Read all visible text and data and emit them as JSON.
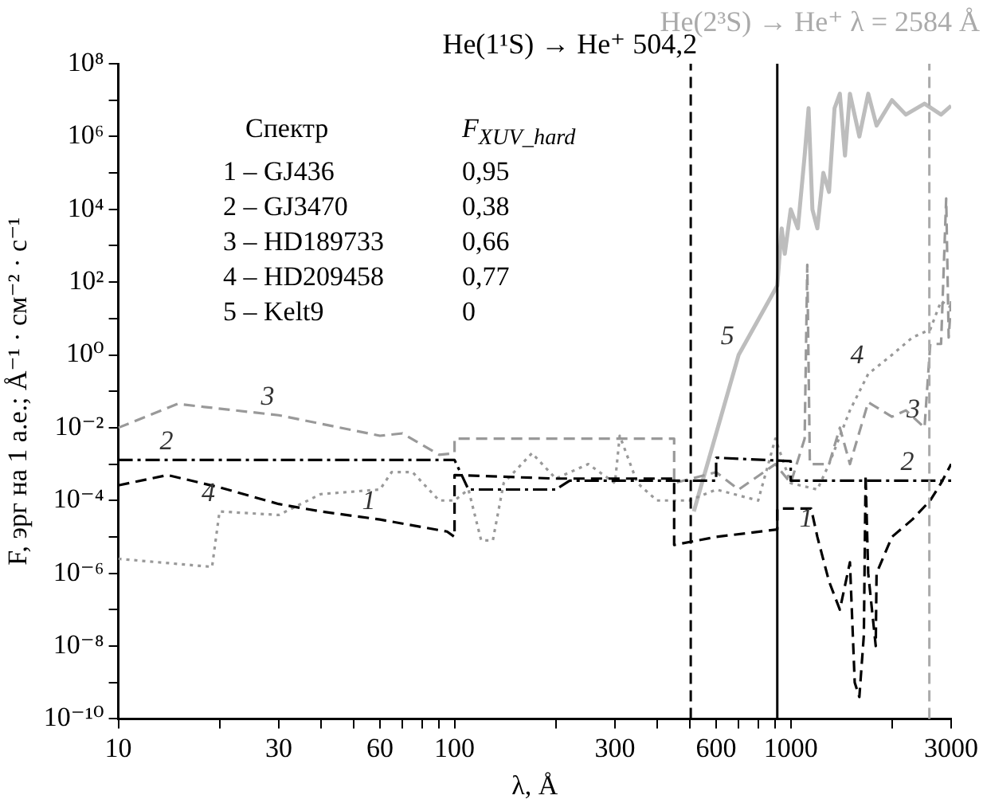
{
  "chart_data": {
    "type": "line",
    "xlabel": "λ, Å",
    "ylabel": "F, эрг на 1 а.е.; Å⁻¹ · см⁻² · с⁻¹",
    "log": "xy",
    "grid": false,
    "legend": false,
    "xlim": [
      10,
      3000
    ],
    "ylim": [
      1e-10,
      100000000.0
    ],
    "xticks": [
      10,
      {
        "value": 20,
        "label": null
      },
      30,
      {
        "value": 40,
        "label": null
      },
      {
        "value": 50,
        "label": null
      },
      60,
      {
        "value": 70,
        "label": null
      },
      {
        "value": 80,
        "label": null
      },
      {
        "value": 90,
        "label": null
      },
      100,
      {
        "value": 200,
        "label": null
      },
      300,
      {
        "value": 400,
        "label": null
      },
      {
        "value": 500,
        "label": null
      },
      600,
      {
        "value": 700,
        "label": null
      },
      {
        "value": 800,
        "label": null
      },
      {
        "value": 900,
        "label": null
      },
      1000,
      {
        "value": 2000,
        "label": null
      },
      3000
    ],
    "yticks": [
      {
        "value": 1e-10,
        "label": "10⁻¹⁰"
      },
      {
        "value": 1e-09,
        "label": null
      },
      {
        "value": 1e-08,
        "label": "10⁻⁸"
      },
      {
        "value": 1e-07,
        "label": null
      },
      {
        "value": 1e-06,
        "label": "10⁻⁶"
      },
      {
        "value": 1e-05,
        "label": null
      },
      {
        "value": 0.0001,
        "label": "10⁻⁴"
      },
      {
        "value": 0.001,
        "label": null
      },
      {
        "value": 0.01,
        "label": "10⁻²"
      },
      {
        "value": 0.1,
        "label": null
      },
      {
        "value": 1,
        "label": "10⁰"
      },
      {
        "value": 10,
        "label": null
      },
      {
        "value": 100,
        "label": "10²"
      },
      {
        "value": 1000,
        "label": null
      },
      {
        "value": 10000,
        "label": "10⁴"
      },
      {
        "value": 100000,
        "label": null
      },
      {
        "value": 1000000,
        "label": "10⁶"
      },
      {
        "value": 10000000,
        "label": null
      },
      {
        "value": 100000000,
        "label": "10⁸"
      }
    ],
    "marker": "none",
    "series": [
      {
        "color": "#000000",
        "line_style": "dashed",
        "x": [
          10,
          14,
          20,
          30,
          40,
          60,
          95,
          100,
          100,
          200,
          450,
          450,
          600,
          912,
          912,
          1150,
          1200,
          1300,
          1400,
          1500,
          1550,
          1600,
          1650,
          1670,
          1700,
          1790,
          1800,
          2000,
          2300,
          2600,
          2800,
          3000
        ],
        "values": [
          0.00026,
          0.0005,
          0.00023,
          8e-05,
          5e-05,
          3e-05,
          1.4e-05,
          1e-05,
          0.0005,
          0.0004,
          0.0004,
          6e-06,
          1e-05,
          1.6e-05,
          6e-05,
          6e-05,
          1e-05,
          6e-07,
          1e-07,
          2e-06,
          1e-09,
          4e-10,
          2e-08,
          0.0005,
          1e-06,
          1e-08,
          1e-06,
          1e-05,
          3e-05,
          0.0001,
          0.0003,
          0.001
        ]
      },
      {
        "color": "#000000",
        "line_style": "dashdot",
        "x": [
          10,
          100,
          110,
          200,
          220,
          600,
          600,
          1000,
          1000,
          3000
        ],
        "values": [
          0.0013,
          0.0013,
          0.0002,
          0.0002,
          0.00035,
          0.00035,
          0.0015,
          0.0012,
          0.00035,
          0.00035
        ]
      },
      {
        "color": "#999999",
        "line_style": "dashed",
        "x": [
          10,
          15,
          30,
          60,
          70,
          90,
          100,
          100,
          450,
          450,
          600,
          700,
          900,
          1000,
          1100,
          1120,
          1140,
          1300,
          1400,
          1500,
          1700,
          2000,
          2200,
          2500,
          2600,
          2800,
          2900,
          2950,
          3000
        ],
        "values": [
          0.01,
          0.045,
          0.022,
          0.006,
          0.007,
          0.0018,
          0.002,
          0.005,
          0.005,
          0.0003,
          0.0006,
          0.0002,
          0.001,
          0.0003,
          0.005,
          300,
          0.001,
          0.001,
          0.01,
          0.001,
          0.05,
          0.02,
          0.03,
          0.01,
          2,
          2,
          20000,
          3,
          30
        ]
      },
      {
        "color": "#999999",
        "line_style": "dotted",
        "x": [
          10,
          19,
          20,
          30,
          40,
          60,
          65,
          75,
          90,
          100,
          110,
          120,
          130,
          140,
          170,
          200,
          250,
          300,
          310,
          350,
          400,
          500,
          600,
          800,
          900,
          1000,
          1200,
          1300,
          1500,
          1700,
          2000,
          2300,
          2600,
          2800,
          3000
        ],
        "values": [
          2.5e-06,
          1.5e-06,
          5e-05,
          4e-05,
          0.00015,
          0.0002,
          0.0006,
          0.0006,
          0.0001,
          0.0001,
          0.0002,
          8e-06,
          8e-06,
          0.0003,
          0.002,
          0.0004,
          0.001,
          0.0003,
          0.006,
          0.0003,
          0.0001,
          0.0001,
          0.0002,
          0.0001,
          0.005,
          0.0003,
          0.0002,
          0.001,
          0.03,
          0.3,
          1,
          3,
          5,
          30,
          20
        ]
      },
      {
        "color": "#bdbdbd",
        "line_style": "solid",
        "x": [
          515,
          700,
          912,
          940,
          960,
          1000,
          1050,
          1100,
          1130,
          1160,
          1200,
          1250,
          1300,
          1350,
          1400,
          1450,
          1500,
          1600,
          1700,
          1800,
          2000,
          2200,
          2500,
          2800,
          3000
        ],
        "values": [
          5e-05,
          1,
          80,
          3000,
          600,
          10000,
          3000,
          300000,
          6000000,
          10000,
          3000,
          100000,
          30000,
          6000000,
          15000000,
          300000,
          15000000,
          1000000,
          15000000,
          2000000,
          10000000,
          4000000,
          8000000,
          4000000,
          7000000
        ]
      }
    ],
    "ref_lines": [
      {
        "axis": "x",
        "value": 504.2,
        "label": "He(1¹S) → He⁺ 504,2",
        "color": "#000000",
        "line_style": "dashed"
      },
      {
        "axis": "x",
        "value": 912,
        "label": null,
        "color": "#000000",
        "line_style": "solid"
      },
      {
        "axis": "x",
        "value": 2584,
        "label": "He(2³S) → He⁺ λ = 2584 Å",
        "color": "#aaaaaa",
        "line_style": "dashed"
      }
    ],
    "annotations": [
      "Спектр",
      "F$_{XUV_hard}$",
      "1 – GJ436",
      "0,95",
      "2 – GJ3470",
      "0,38",
      "3 – HD189733",
      "0,66",
      "4 – HD209458",
      "0,77",
      "5 – Kelt9",
      "0",
      {
        "text": "1",
        "x": 60,
        "y": 3e-05
      },
      {
        "text": "1",
        "x": 1200,
        "y": 1e-05
      },
      {
        "text": "2",
        "x": 15,
        "y": 0.0013
      },
      {
        "text": "2",
        "x": 2400,
        "y": 0.00035
      },
      {
        "text": "3",
        "x": 30,
        "y": 0.022
      },
      {
        "text": "3",
        "x": 2500,
        "y": 0.01
      },
      {
        "text": "4",
        "x": 20,
        "y": 5e-05
      },
      {
        "text": "4",
        "x": 1700,
        "y": 0.3
      },
      {
        "text": "5",
        "x": 700,
        "y": 1
      }
    ]
  }
}
